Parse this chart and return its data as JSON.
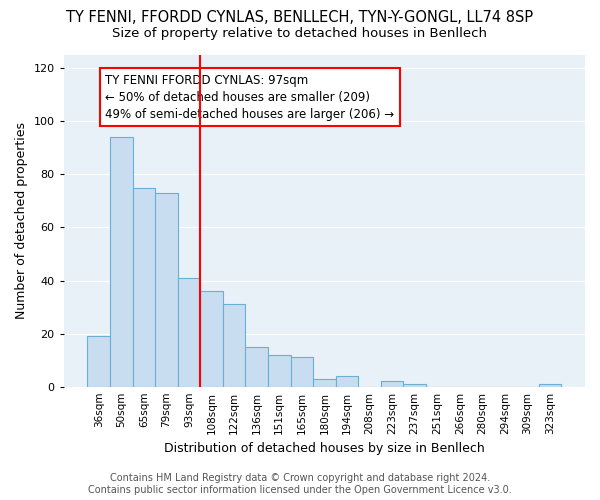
{
  "title": "TY FENNI, FFORDD CYNLAS, BENLLECH, TYN-Y-GONGL, LL74 8SP",
  "subtitle": "Size of property relative to detached houses in Benllech",
  "xlabel": "Distribution of detached houses by size in Benllech",
  "ylabel": "Number of detached properties",
  "categories": [
    "36sqm",
    "50sqm",
    "65sqm",
    "79sqm",
    "93sqm",
    "108sqm",
    "122sqm",
    "136sqm",
    "151sqm",
    "165sqm",
    "180sqm",
    "194sqm",
    "208sqm",
    "223sqm",
    "237sqm",
    "251sqm",
    "266sqm",
    "280sqm",
    "294sqm",
    "309sqm",
    "323sqm"
  ],
  "values": [
    19,
    94,
    75,
    73,
    41,
    36,
    31,
    15,
    12,
    11,
    3,
    4,
    0,
    2,
    1,
    0,
    0,
    0,
    0,
    0,
    1
  ],
  "bar_color": "#c8ddf0",
  "bar_edge_color": "#6baed6",
  "red_line_x": 4,
  "annotation_line1": "TY FENNI FFORDD CYNLAS: 97sqm",
  "annotation_line2": "← 50% of detached houses are smaller (209)",
  "annotation_line3": "49% of semi-detached houses are larger (206) →",
  "ylim": [
    0,
    125
  ],
  "yticks": [
    0,
    20,
    40,
    60,
    80,
    100,
    120
  ],
  "background_color": "#e8f0f8",
  "footer": "Contains HM Land Registry data © Crown copyright and database right 2024.\nContains public sector information licensed under the Open Government Licence v3.0.",
  "title_fontsize": 10.5,
  "subtitle_fontsize": 9.5,
  "annotation_fontsize": 8.5
}
